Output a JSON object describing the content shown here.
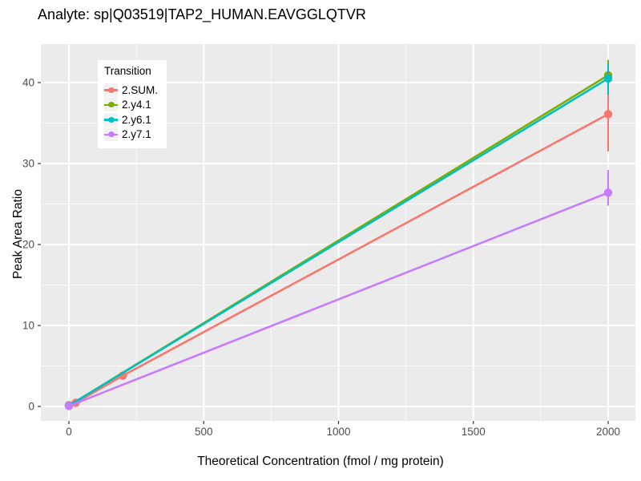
{
  "title": "Analyte: sp|Q03519|TAP2_HUMAN.EAVGGLQTVR",
  "colors": {
    "panel_background": "#EBEBEB",
    "gridline": "#FFFFFF",
    "tick_mark": "#333333",
    "tick_label": "#4D4D4D",
    "text": "#000000",
    "legend_key_background": "#F2F2F2"
  },
  "chart_data": {
    "type": "line",
    "title": "Analyte: sp|Q03519|TAP2_HUMAN.EAVGGLQTVR",
    "xlabel": "Theoretical Concentration (fmol / mg protein)",
    "ylabel": "Peak Area Ratio",
    "xlim": [
      -100,
      2100
    ],
    "ylim": [
      -1.8,
      44.7
    ],
    "xticks": [
      0,
      500,
      1000,
      1500,
      2000
    ],
    "xticks_minor": [
      250,
      750,
      1250,
      1750
    ],
    "yticks": [
      0,
      10,
      20,
      30,
      40
    ],
    "yticks_minor": [
      5,
      15,
      25,
      35
    ],
    "grid": true,
    "legend_title": "Transition",
    "legend_position": "inside-top-left",
    "series": [
      {
        "name": "2.SUM.",
        "color": "#F8766D",
        "points": [
          {
            "x": 0,
            "y": 0.15
          },
          {
            "x": 25,
            "y": 0.45
          },
          {
            "x": 200,
            "y": 3.8
          },
          {
            "x": 2000,
            "y": 36.1,
            "ymin": 31.5,
            "ymax": 40.6
          }
        ]
      },
      {
        "name": "2.y4.1",
        "color": "#7CAE00",
        "points": [
          {
            "x": 0,
            "y": 0.1
          },
          {
            "x": 2000,
            "y": 40.9,
            "ymin": 39.3,
            "ymax": 42.8
          }
        ]
      },
      {
        "name": "2.y6.1",
        "color": "#00BFC4",
        "points": [
          {
            "x": 0,
            "y": 0.1
          },
          {
            "x": 2000,
            "y": 40.5,
            "ymin": 38.5,
            "ymax": 42.4
          }
        ]
      },
      {
        "name": "2.y7.1",
        "color": "#C77CFF",
        "points": [
          {
            "x": 0,
            "y": 0.05
          },
          {
            "x": 2000,
            "y": 26.4,
            "ymin": 24.8,
            "ymax": 29.2
          }
        ]
      }
    ]
  }
}
